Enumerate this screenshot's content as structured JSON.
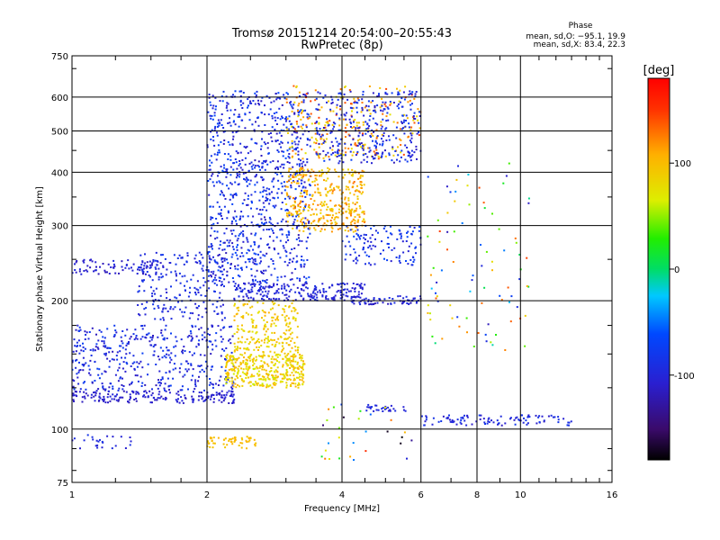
{
  "chart_data": {
    "type": "scatter",
    "title": "Tromsø 20151214 20:54:00–20:55:43",
    "subtitle": "RwPretec (8p)",
    "xlabel": "Frequency [MHz]",
    "ylabel": "Stationary phase Virtual Height [km]",
    "x_scale": "log2",
    "y_scale": "log",
    "xlim": [
      1,
      16
    ],
    "ylim": [
      75,
      750
    ],
    "x_ticks": [
      1,
      2,
      4,
      6,
      8,
      10,
      16
    ],
    "x_tick_labels": [
      "1",
      "2",
      "4",
      "6",
      "8",
      "10",
      "16"
    ],
    "x_grid": [
      2,
      4,
      6,
      8,
      10
    ],
    "y_ticks": [
      75,
      100,
      200,
      300,
      400,
      500,
      600,
      750
    ],
    "y_tick_labels": [
      "75",
      "100",
      "200",
      "300",
      "400",
      "500",
      "600",
      "750"
    ],
    "y_grid": [
      100,
      200,
      300,
      400,
      500,
      600
    ],
    "grid": true,
    "stats": {
      "heading": "Phase",
      "o_line": "mean, sd,O: −95.1, 19.9",
      "x_line": "mean, sd,X:  83.4, 22.3"
    },
    "colorbar": {
      "label": "[deg]",
      "range": [
        -180,
        180
      ],
      "ticks": [
        100,
        0,
        -100
      ],
      "tick_labels": [
        "100",
        "0",
        "-100"
      ]
    },
    "clusters": [
      {
        "f": [
          1.0,
          1.4
        ],
        "h": [
          90,
          97
        ],
        "phase": [
          -110,
          -80
        ],
        "n": 25
      },
      {
        "f": [
          2.0,
          2.6
        ],
        "h": [
          90,
          96
        ],
        "phase": [
          90,
          110
        ],
        "n": 55
      },
      {
        "f": [
          1.0,
          2.3
        ],
        "h": [
          115,
          123
        ],
        "phase": [
          -120,
          -100
        ],
        "n": 180
      },
      {
        "f": [
          1.0,
          2.3
        ],
        "h": [
          123,
          175
        ],
        "phase": [
          -120,
          -70
        ],
        "n": 420
      },
      {
        "f": [
          1.0,
          1.6
        ],
        "h": [
          230,
          250
        ],
        "phase": [
          -120,
          -95
        ],
        "n": 80
      },
      {
        "f": [
          1.4,
          2.2
        ],
        "h": [
          180,
          260
        ],
        "phase": [
          -110,
          -80
        ],
        "n": 220
      },
      {
        "f": [
          2.0,
          3.4
        ],
        "h": [
          220,
          620
        ],
        "phase": [
          -120,
          -60
        ],
        "n": 900
      },
      {
        "f": [
          2.2,
          3.3
        ],
        "h": [
          125,
          150
        ],
        "phase": [
          60,
          110
        ],
        "n": 380
      },
      {
        "f": [
          2.3,
          3.2
        ],
        "h": [
          150,
          200
        ],
        "phase": [
          70,
          110
        ],
        "n": 220
      },
      {
        "f": [
          2.3,
          4.5
        ],
        "h": [
          200,
          220
        ],
        "phase": [
          -115,
          -90
        ],
        "n": 230
      },
      {
        "f": [
          3.0,
          4.5
        ],
        "h": [
          290,
          410
        ],
        "phase": [
          80,
          130
        ],
        "n": 380
      },
      {
        "f": [
          3.0,
          6.0
        ],
        "h": [
          430,
          640
        ],
        "phase": [
          70,
          150
        ],
        "n": 250
      },
      {
        "f": [
          3.5,
          6.0
        ],
        "h": [
          420,
          620
        ],
        "phase": [
          -120,
          -70
        ],
        "n": 320
      },
      {
        "f": [
          4.0,
          6.0
        ],
        "h": [
          240,
          300
        ],
        "phase": [
          -110,
          -60
        ],
        "n": 120
      },
      {
        "f": [
          4.2,
          6.0
        ],
        "h": [
          196,
          205
        ],
        "phase": [
          -120,
          -90
        ],
        "n": 70
      },
      {
        "f": [
          4.5,
          5.6
        ],
        "h": [
          110,
          114
        ],
        "phase": [
          -110,
          -90
        ],
        "n": 30
      },
      {
        "f": [
          6.0,
          13.0
        ],
        "h": [
          102,
          108
        ],
        "phase": [
          -115,
          -80
        ],
        "n": 100
      },
      {
        "f": [
          6.2,
          10.5
        ],
        "h": [
          150,
          420
        ],
        "phase": [
          -120,
          150
        ],
        "n": 90
      },
      {
        "f": [
          3.6,
          6.0
        ],
        "h": [
          80,
          115
        ],
        "phase": [
          -180,
          160
        ],
        "n": 30
      }
    ]
  }
}
